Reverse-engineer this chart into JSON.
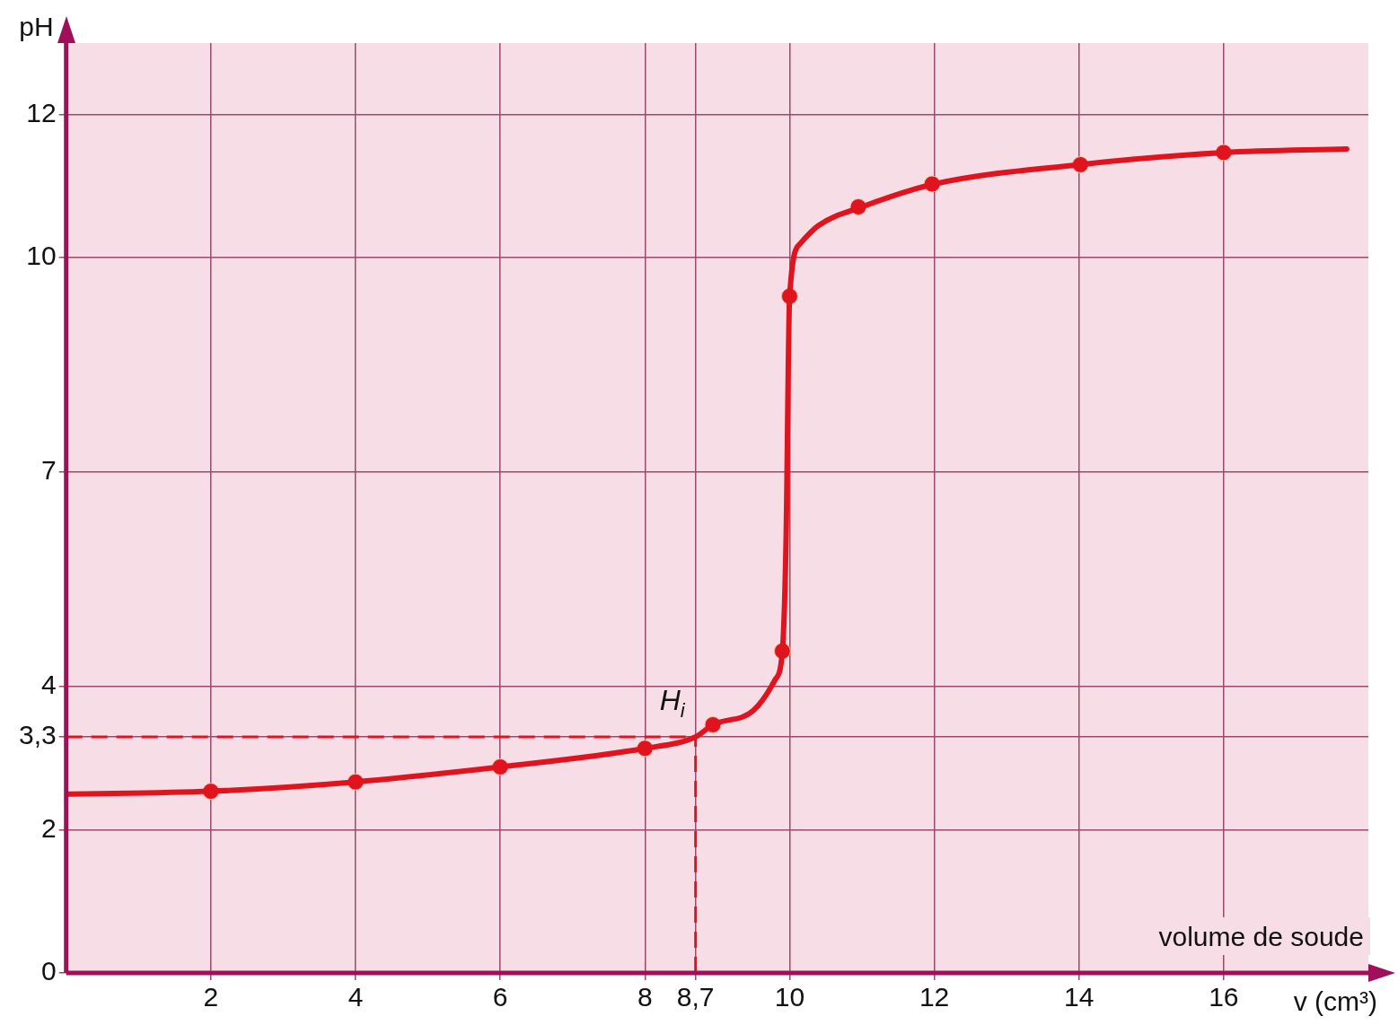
{
  "chart_data": {
    "type": "line",
    "xlabel": "v (cm³)",
    "ylabel": "pH",
    "annotations": [
      "volume de soude",
      {
        "text": "H$_{i}$",
        "x": 8.7,
        "y": 3.3
      }
    ],
    "xlim": [
      0,
      18
    ],
    "ylim": [
      0,
      13
    ],
    "xticks": [
      2,
      4,
      6,
      8,
      {
        "value": 8.7,
        "label": "8,7"
      },
      10,
      12,
      14,
      16
    ],
    "yticks": [
      0,
      2,
      {
        "value": 3.3,
        "label": "3,3"
      },
      4,
      7,
      10,
      12
    ],
    "grid": true,
    "ref_lines": [
      {
        "axis": "y",
        "value": 3.3,
        "color": "#e0141e",
        "line_style": "dashed"
      },
      {
        "axis": "x",
        "value": 8.7,
        "color": "#e0141e",
        "line_style": "dashed"
      }
    ],
    "series": [
      {
        "color": "#e0141e",
        "marker": "none",
        "line_style": "solid",
        "x": [
          0,
          2,
          4,
          6,
          8,
          8.7,
          8.94,
          9.5,
          9.8,
          9.9,
          9.95,
          10,
          10.15,
          10.4,
          11,
          12,
          14,
          16,
          17.7
        ],
        "values": [
          2.5,
          2.54,
          2.67,
          2.88,
          3.14,
          3.3,
          3.47,
          3.67,
          4.1,
          4.5,
          6.0,
          9.46,
          10.2,
          10.45,
          10.71,
          11.03,
          11.3,
          11.47,
          11.52
        ]
      },
      {
        "type": "scatter",
        "color": "#e0141e",
        "marker": "circle",
        "x": [
          2,
          4,
          6,
          8,
          8.94,
          9.9,
          10,
          10.95,
          11.97,
          14.02,
          16
        ],
        "values": [
          2.54,
          2.67,
          2.88,
          3.14,
          3.47,
          4.5,
          9.46,
          10.71,
          11.03,
          11.3,
          11.47
        ]
      }
    ]
  }
}
